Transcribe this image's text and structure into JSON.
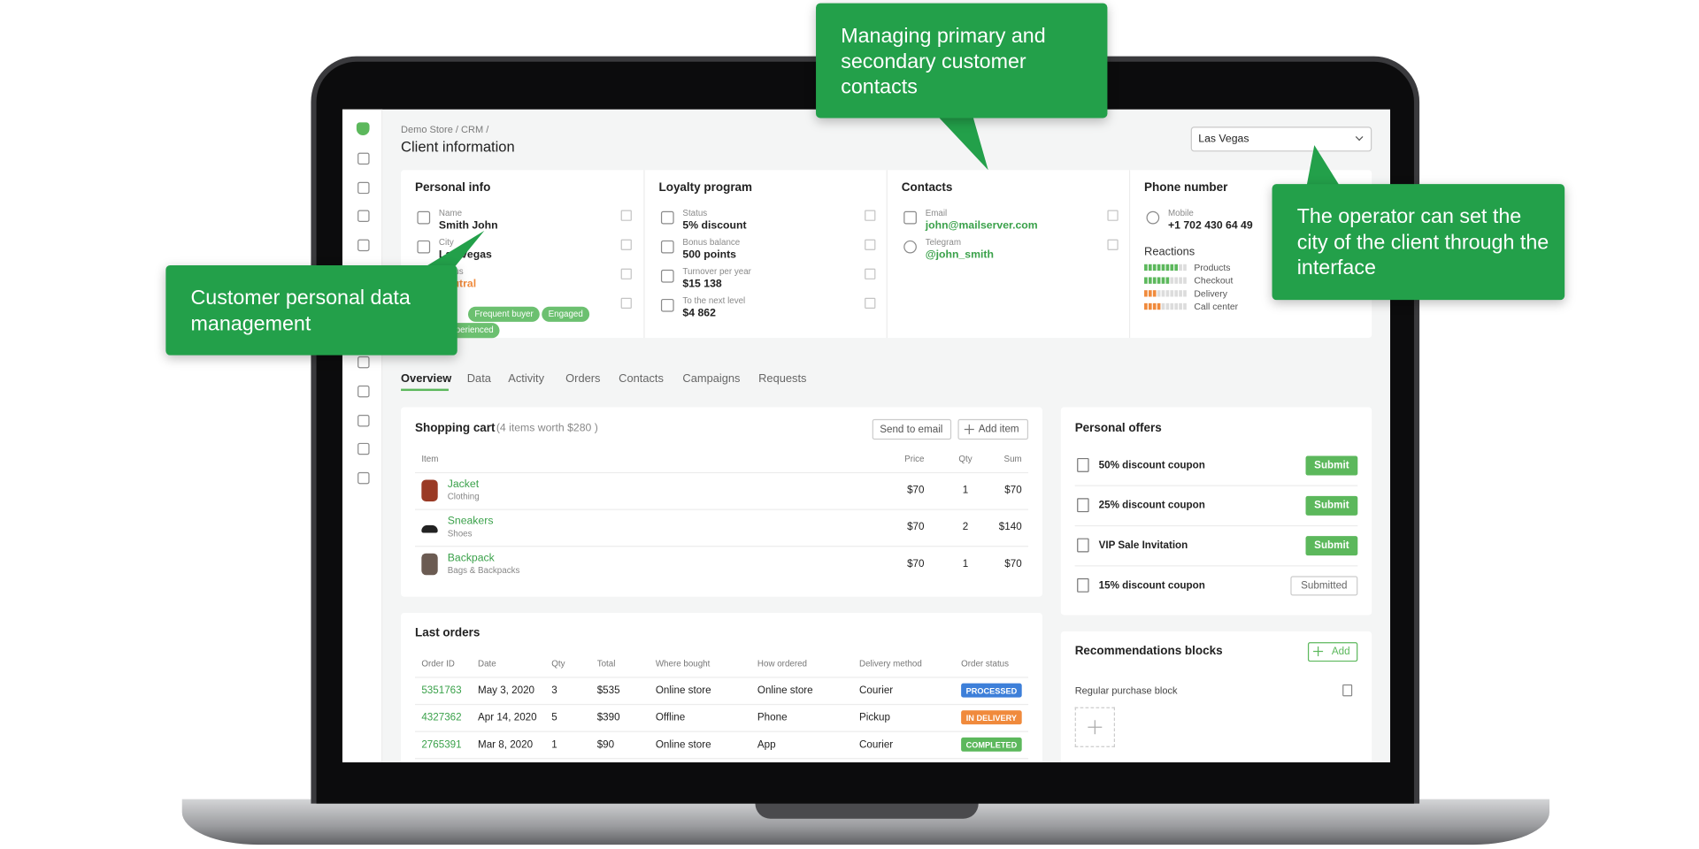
{
  "breadcrumb": "Demo Store / CRM /",
  "page_title": "Client information",
  "city_select": "Las Vegas",
  "personal_info": {
    "title": "Personal info",
    "fields": [
      {
        "label": "Name",
        "value": "Smith John"
      },
      {
        "label": "City",
        "value": "Las Vegas"
      },
      {
        "label": "Status",
        "value": "Neutral"
      }
    ],
    "tags": [
      "Frequent buyer",
      "Engaged",
      "Experienced"
    ]
  },
  "loyalty": {
    "title": "Loyalty program",
    "fields": [
      {
        "label": "Status",
        "value": "5% discount"
      },
      {
        "label": "Bonus balance",
        "value": "500 points"
      },
      {
        "label": "Turnover per year",
        "value": "$15 138"
      },
      {
        "label": "To the next level",
        "value": "$4 862"
      }
    ]
  },
  "contacts": {
    "title": "Contacts",
    "fields": [
      {
        "label": "Email",
        "value": "john@mailserver.com"
      },
      {
        "label": "Telegram",
        "value": "@john_smith"
      }
    ]
  },
  "phone": {
    "title": "Phone number",
    "fields": [
      {
        "label": "Mobile",
        "value": "+1 702 430 64 49"
      }
    ],
    "reactions_title": "Reactions",
    "reactions": [
      {
        "name": "Products",
        "level": 8,
        "color": "#5cb85c"
      },
      {
        "name": "Checkout",
        "level": 6,
        "color": "#5cb85c"
      },
      {
        "name": "Delivery",
        "level": 3,
        "color": "#f08a3c"
      },
      {
        "name": "Call center",
        "level": 4,
        "color": "#f08a3c"
      }
    ]
  },
  "tabs": [
    "Overview",
    "Data",
    "Activity",
    "Orders",
    "Contacts",
    "Campaigns",
    "Requests"
  ],
  "cart": {
    "title": "Shopping cart",
    "summary": "(4 items worth $280 )",
    "buttons": [
      "Send to email",
      "Add item"
    ],
    "columns": [
      "Item",
      "Price",
      "Qty",
      "Sum"
    ],
    "rows": [
      {
        "name": "Jacket",
        "category": "Clothing",
        "price": "$70",
        "qty": 1,
        "sum": "$70"
      },
      {
        "name": "Sneakers",
        "category": "Shoes",
        "price": "$70",
        "qty": 2,
        "sum": "$140"
      },
      {
        "name": "Backpack",
        "category": "Bags & Backpacks",
        "price": "$70",
        "qty": 1,
        "sum": "$70"
      }
    ]
  },
  "orders": {
    "title": "Last orders",
    "columns": [
      "Order ID",
      "Date",
      "Qty",
      "Total",
      "Where bought",
      "How ordered",
      "Delivery method",
      "Order status"
    ],
    "rows": [
      [
        "5351763",
        "May 3, 2020",
        3,
        "$535",
        "Online store",
        "Online store",
        "Courier",
        "PROCESSED"
      ],
      [
        "4327362",
        "Apr 14, 2020",
        5,
        "$390",
        "Offline",
        "Phone",
        "Pickup",
        "IN DELIVERY"
      ],
      [
        "2765391",
        "Mar 8, 2020",
        1,
        "$90",
        "Online store",
        "App",
        "Courier",
        "COMPLETED"
      ]
    ],
    "status_colors": [
      "#3d7fd9",
      "#f08a3c",
      "#5cb85c"
    ]
  },
  "offers": {
    "title": "Personal offers",
    "items": [
      {
        "label": "50% discount coupon",
        "button": "Submit"
      },
      {
        "label": "25% discount coupon",
        "button": "Submit"
      },
      {
        "label": "VIP Sale Invitation",
        "button": "Submit"
      },
      {
        "label": "15% discount coupon",
        "button": "Submitted"
      }
    ]
  },
  "recommendations": {
    "title": "Recommendations blocks",
    "button": "Add",
    "items": [
      "Regular purchase block"
    ]
  },
  "callouts": [
    "Managing primary and secondary customer contacts",
    "Customer personal data management",
    "The operator can set the city of the client through the interface"
  ]
}
